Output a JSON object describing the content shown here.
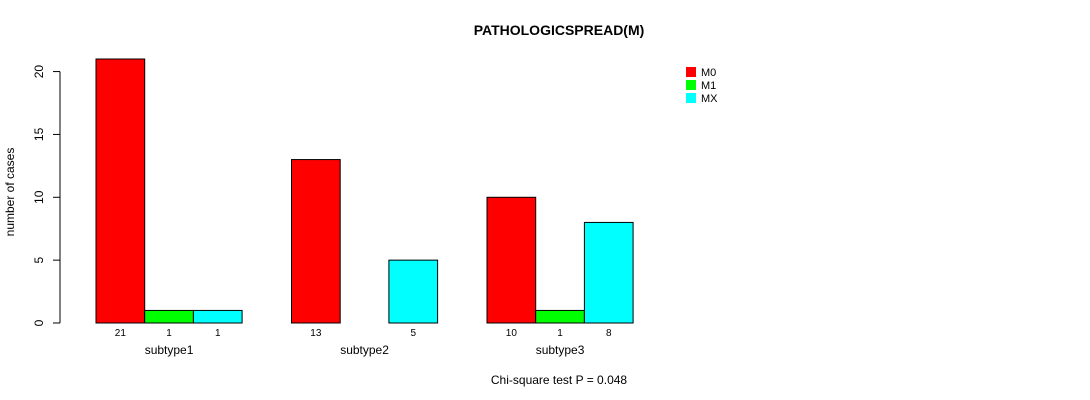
{
  "chart_data": {
    "type": "bar",
    "title": "PATHOLOGICSPREAD(M)",
    "xlabel": "",
    "ylabel": "number of cases",
    "categories": [
      "subtype1",
      "subtype2",
      "subtype3"
    ],
    "series": [
      {
        "name": "M0",
        "color": "#ff0000",
        "values": [
          21,
          13,
          10
        ],
        "labels": [
          "21",
          "13",
          "10"
        ]
      },
      {
        "name": "M1",
        "color": "#00ff00",
        "values": [
          1,
          0,
          1
        ],
        "labels": [
          "1",
          "",
          "1"
        ]
      },
      {
        "name": "MX",
        "color": "#00ffff",
        "values": [
          1,
          5,
          8
        ],
        "labels": [
          "1",
          "5",
          "8"
        ]
      }
    ],
    "ylim": [
      0,
      21
    ],
    "yticks": [
      0,
      5,
      10,
      15,
      20
    ],
    "grid": false,
    "legend_position": "top-right",
    "footnote": "Chi-square test P = 0.048"
  }
}
